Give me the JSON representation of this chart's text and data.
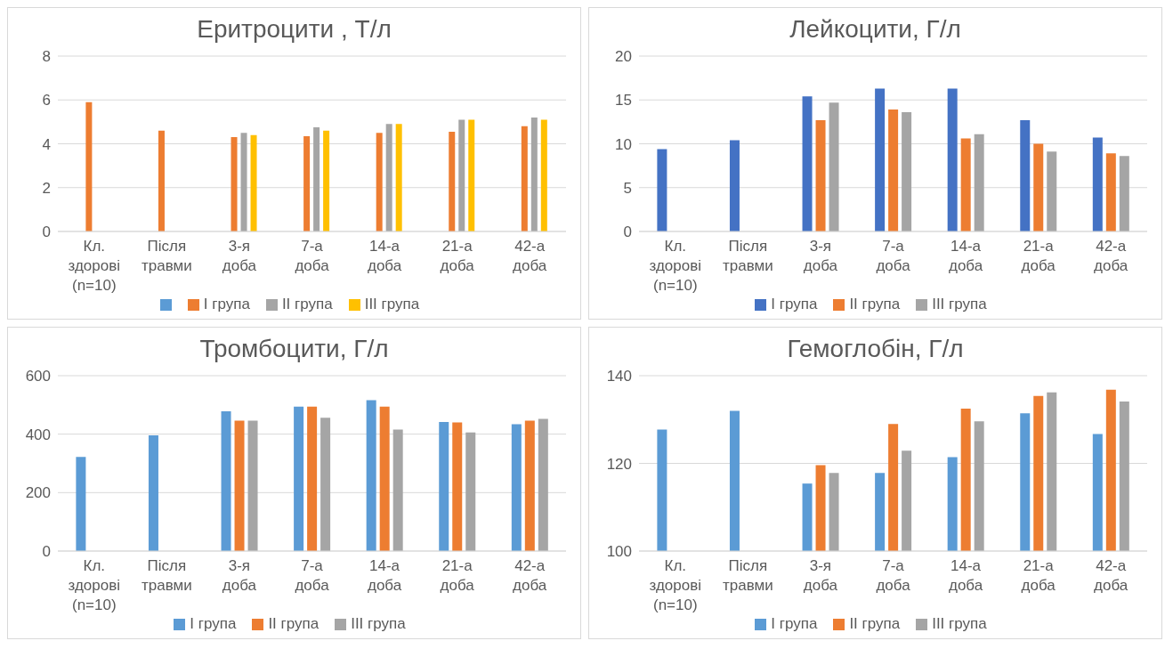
{
  "chart_data": [
    {
      "type": "bar",
      "title": "Еритроцити , Т/л",
      "categories": [
        "Кл. здорові (n=10)",
        "Після травми",
        "3-я доба",
        "7-а доба",
        "14-а доба",
        "21-а доба",
        "42-а доба"
      ],
      "series": [
        {
          "color": "#5b9bd5",
          "values": [
            null,
            null,
            null,
            null,
            null,
            null,
            null
          ]
        },
        {
          "name": "I група",
          "color": "#ed7d31",
          "values": [
            5.9,
            4.6,
            4.3,
            4.35,
            4.5,
            4.55,
            4.8
          ]
        },
        {
          "name": "II група",
          "color": "#a5a5a5",
          "values": [
            null,
            null,
            4.5,
            4.75,
            4.9,
            5.1,
            5.2
          ]
        },
        {
          "name": "III група",
          "color": "#ffc000",
          "values": [
            null,
            null,
            4.4,
            4.6,
            4.9,
            5.1,
            5.1
          ]
        }
      ],
      "ylim": [
        0,
        8
      ],
      "yticks": [
        0,
        2,
        4,
        6,
        8
      ],
      "grid": "y",
      "legend": "bottom"
    },
    {
      "type": "bar",
      "title": "Лейкоцити, Г/л",
      "categories": [
        "Кл. здорові (n=10)",
        "Після травми",
        "3-я доба",
        "7-а доба",
        "14-а доба",
        "21-а доба",
        "42-а доба"
      ],
      "series": [
        {
          "name": "I група",
          "color": "#4472c4",
          "values": [
            9.4,
            10.4,
            15.4,
            16.3,
            16.3,
            12.7,
            10.7
          ]
        },
        {
          "name": "II група",
          "color": "#ed7d31",
          "values": [
            null,
            null,
            12.7,
            13.9,
            10.6,
            10.0,
            8.9
          ]
        },
        {
          "name": "III група",
          "color": "#a5a5a5",
          "values": [
            null,
            null,
            14.7,
            13.6,
            11.1,
            9.1,
            8.6
          ]
        }
      ],
      "ylim": [
        0,
        20
      ],
      "yticks": [
        0,
        5,
        10,
        15,
        20
      ],
      "grid": "y",
      "legend": "bottom"
    },
    {
      "type": "bar",
      "title": "Тромбоцити, Г/л",
      "categories": [
        "Кл. здорові (n=10)",
        "Після травми",
        "3-я доба",
        "7-а доба",
        "14-а доба",
        "21-а доба",
        "42-а доба"
      ],
      "series": [
        {
          "name": "I група",
          "color": "#5b9bd5",
          "values": [
            322,
            396,
            478,
            494,
            516,
            442,
            434
          ]
        },
        {
          "name": "II група",
          "color": "#ed7d31",
          "values": [
            null,
            null,
            446,
            494,
            494,
            440,
            446
          ]
        },
        {
          "name": "III група",
          "color": "#a5a5a5",
          "values": [
            null,
            null,
            446,
            456,
            416,
            406,
            452
          ]
        }
      ],
      "ylim": [
        0,
        600
      ],
      "yticks": [
        0,
        200,
        400,
        600
      ],
      "grid": "y",
      "legend": "bottom"
    },
    {
      "type": "bar",
      "title": "Гемоглобін, Г/л",
      "categories": [
        "Кл. здорові (n=10)",
        "Після травми",
        "3-я доба",
        "7-а доба",
        "14-а доба",
        "21-а доба",
        "42-а доба"
      ],
      "series": [
        {
          "name": "I група",
          "color": "#5b9bd5",
          "values": [
            127.7,
            132.0,
            115.4,
            117.8,
            121.4,
            131.4,
            126.7
          ]
        },
        {
          "name": "II група",
          "color": "#ed7d31",
          "values": [
            null,
            null,
            119.6,
            129.0,
            132.5,
            135.4,
            136.8
          ]
        },
        {
          "name": "III група",
          "color": "#a5a5a5",
          "values": [
            null,
            null,
            117.8,
            122.9,
            129.6,
            136.2,
            134.1
          ]
        }
      ],
      "ylim": [
        100,
        140
      ],
      "yticks": [
        100,
        120,
        140
      ],
      "grid": "y",
      "legend": "bottom"
    }
  ]
}
